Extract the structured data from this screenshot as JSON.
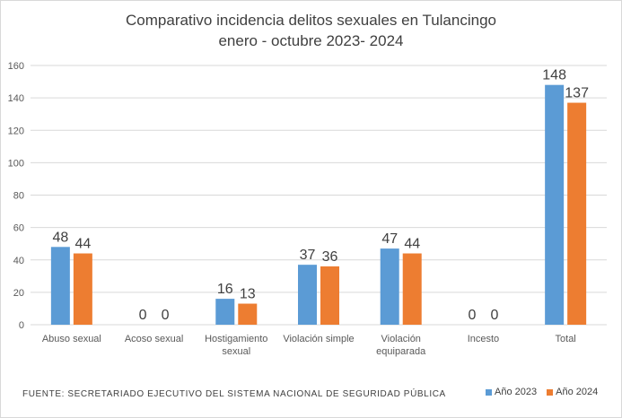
{
  "chart_data": {
    "type": "bar",
    "title_lines": [
      "Comparativo incidencia delitos sexuales en Tulancingo",
      "enero - octubre 2023- 2024"
    ],
    "categories": [
      [
        "Abuso sexual"
      ],
      [
        "Acoso sexual"
      ],
      [
        "Hostigamiento",
        "sexual"
      ],
      [
        "Violación simple"
      ],
      [
        "Violación",
        "equiparada"
      ],
      [
        "Incesto"
      ],
      [
        "Total"
      ]
    ],
    "series": [
      {
        "name": "Año 2023",
        "color": "#5b9bd5",
        "values": [
          48,
          0,
          16,
          37,
          47,
          0,
          148
        ]
      },
      {
        "name": "Año 2024",
        "color": "#ed7d31",
        "values": [
          44,
          0,
          13,
          36,
          44,
          0,
          137
        ]
      }
    ],
    "ylim": [
      0,
      160
    ],
    "yticks": [
      "0",
      "20",
      "40",
      "60",
      "80",
      "100",
      "120",
      "140",
      "160"
    ],
    "grid": true,
    "legend_position": "bottom-right",
    "source": "FUENTE:  SECRETARIADO  EJECUTIVO  DEL SISTEMA NACIONAL DE SEGURIDAD PÚBLICA"
  }
}
